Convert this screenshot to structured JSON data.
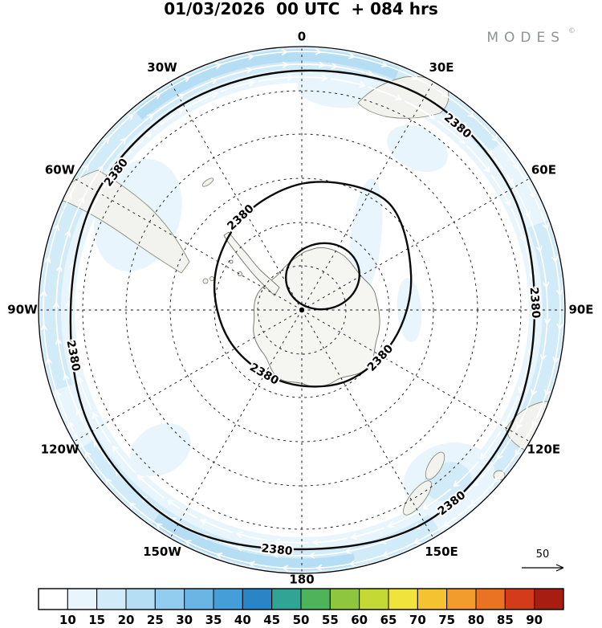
{
  "header": {
    "title": "01/03/2026  00 UTC  + 084 hrs",
    "brand": "MODES",
    "brand_sup": "©"
  },
  "map": {
    "contour_label": "2380",
    "longitude_labels": [
      {
        "label": "0",
        "angle": 0
      },
      {
        "label": "30E",
        "angle": 30
      },
      {
        "label": "60E",
        "angle": 60
      },
      {
        "label": "90E",
        "angle": 90
      },
      {
        "label": "120E",
        "angle": 120
      },
      {
        "label": "150E",
        "angle": 150
      },
      {
        "label": "180",
        "angle": 180
      },
      {
        "label": "150W",
        "angle": 210
      },
      {
        "label": "120W",
        "angle": 240
      },
      {
        "label": "90W",
        "angle": 270
      },
      {
        "label": "60W",
        "angle": 300
      },
      {
        "label": "30W",
        "angle": 330
      }
    ]
  },
  "reference_arrow": {
    "label": "50"
  },
  "colorbar": {
    "tick_labels": [
      "10",
      "15",
      "20",
      "25",
      "30",
      "35",
      "40",
      "45",
      "50",
      "55",
      "60",
      "65",
      "70",
      "75",
      "80",
      "85",
      "90"
    ],
    "colors": [
      "#ffffff",
      "#e8f5fc",
      "#d2ebf8",
      "#b5ddf4",
      "#92ccee",
      "#6ab5e4",
      "#459ed8",
      "#2b84c6",
      "#31a496",
      "#4fb35c",
      "#8ec63f",
      "#c4d934",
      "#f0e33b",
      "#f5c231",
      "#f19c2c",
      "#e97323",
      "#d43b1a",
      "#a81d12"
    ]
  },
  "chart_data": {
    "type": "heatmap",
    "title": "01/03/2026 00 UTC + 084 hrs",
    "projection": "south-polar-stereographic-map",
    "pole_at_center": "South Pole",
    "longitude_ring_labels": [
      "0",
      "30E",
      "60E",
      "90E",
      "120E",
      "150E",
      "180",
      "150W",
      "120W",
      "90W",
      "60W",
      "30W"
    ],
    "dashed_latitude_circles": 5,
    "contour_labeled_value": 2380,
    "contour_label_occurrences": 9,
    "shading_scale_ticks": [
      10,
      15,
      20,
      25,
      30,
      35,
      40,
      45,
      50,
      55,
      60,
      65,
      70,
      75,
      80,
      85,
      90
    ],
    "shading_colors": [
      "#ffffff",
      "#e8f5fc",
      "#d2ebf8",
      "#b5ddf4",
      "#92ccee",
      "#6ab5e4",
      "#459ed8",
      "#2b84c6",
      "#31a496",
      "#4fb35c",
      "#8ec63f",
      "#c4d934",
      "#f0e33b",
      "#f5c231",
      "#f19c2c",
      "#e97323",
      "#d43b1a",
      "#a81d12"
    ],
    "visible_shaded_value_range": [
      10,
      25
    ],
    "shaded_region": "annulus near map edge (mid-latitude belt) with patches extending toward the pole",
    "wind_reference_value": 50,
    "legend_position": "bottom"
  }
}
